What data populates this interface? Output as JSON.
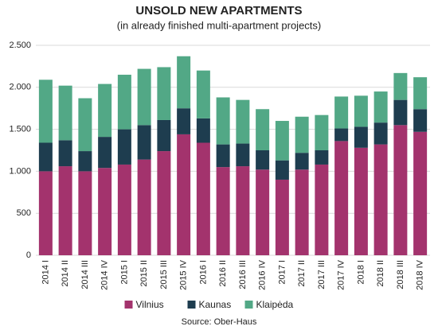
{
  "chart_data": {
    "type": "stacked_bar",
    "title": "UNSOLD NEW APARTMENTS",
    "subtitle": "(in already finished multi-apartment projects)",
    "source": "Source: Ober-Haus",
    "categories": [
      "2014 I",
      "2014 II",
      "2014 III",
      "2014 IV",
      "2015 I",
      "2015 II",
      "2015 III",
      "2015 IV",
      "2016 I",
      "2016 II",
      "2016 III",
      "2016 IV",
      "2017 I",
      "2017 II",
      "2017 III",
      "2017 IV",
      "2018 I",
      "2018 II",
      "2018 III",
      "2018 IV"
    ],
    "series": [
      {
        "name": "Vilnius",
        "color": "#a3336d",
        "values": [
          1000,
          1060,
          1000,
          1040,
          1080,
          1140,
          1240,
          1440,
          1340,
          1050,
          1060,
          1020,
          900,
          1020,
          1080,
          1360,
          1280,
          1320,
          1550,
          1470
        ]
      },
      {
        "name": "Kaunas",
        "color": "#1e3d4f",
        "values": [
          340,
          310,
          240,
          370,
          420,
          410,
          370,
          310,
          290,
          270,
          270,
          230,
          230,
          200,
          170,
          150,
          250,
          260,
          300,
          270
        ]
      },
      {
        "name": "Klaipėda",
        "color": "#52a886",
        "values": [
          750,
          650,
          630,
          630,
          650,
          670,
          630,
          620,
          570,
          560,
          520,
          490,
          470,
          430,
          420,
          380,
          370,
          370,
          320,
          380
        ]
      }
    ],
    "ylim": [
      0,
      2500
    ],
    "yticks": [
      0,
      500,
      {
        "value": 1000,
        "label": "1.000"
      },
      {
        "value": 1500,
        "label": "1.500"
      },
      {
        "value": 2000,
        "label": "2.000"
      },
      {
        "value": 2500,
        "label": "2.500"
      }
    ],
    "grid": true,
    "legend": "bottom"
  }
}
